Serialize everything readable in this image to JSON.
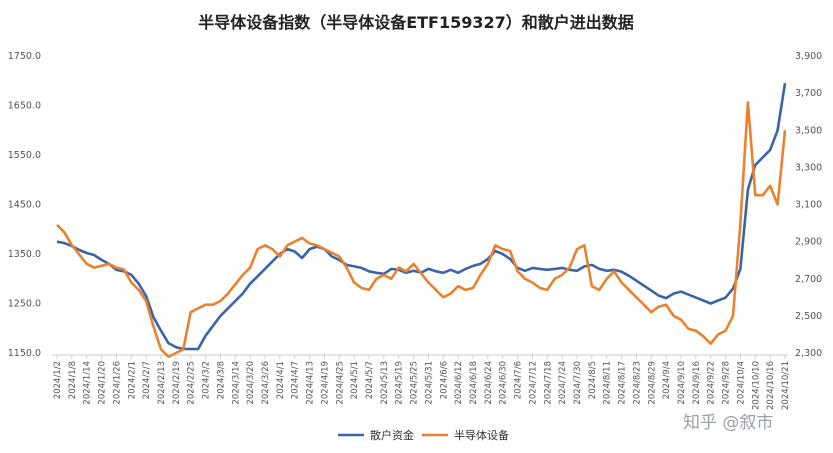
{
  "chart_data": {
    "type": "line",
    "title": "半导体设备指数（半导体设备ETF159327）和散户进出数据",
    "y_left": {
      "ticks": [
        "1750.0",
        "1650.0",
        "1550.0",
        "1450.0",
        "1350.0",
        "1250.0",
        "1150.0"
      ],
      "min": 1150,
      "max": 1750
    },
    "y_right": {
      "ticks": [
        "3,900",
        "3,700",
        "3,500",
        "3,300",
        "3,100",
        "2,900",
        "2,700",
        "2,500",
        "2,300"
      ],
      "min": 2300,
      "max": 3900
    },
    "x_labels": [
      "2024/1/2",
      "2024/1/8",
      "2024/1/14",
      "2024/1/20",
      "2024/1/26",
      "2024/2/1",
      "2024/2/7",
      "2024/2/13",
      "2024/2/19",
      "2024/2/25",
      "2024/3/2",
      "2024/3/8",
      "2024/3/14",
      "2024/3/20",
      "2024/3/26",
      "2024/4/1",
      "2024/4/7",
      "2024/4/13",
      "2024/4/19",
      "2024/4/25",
      "2024/5/1",
      "2024/5/7",
      "2024/5/13",
      "2024/5/19",
      "2024/5/25",
      "2024/5/31",
      "2024/6/6",
      "2024/6/12",
      "2024/6/18",
      "2024/6/24",
      "2024/6/30",
      "2024/7/6",
      "2024/7/12",
      "2024/7/18",
      "2024/7/24",
      "2024/7/30",
      "2024/8/5",
      "2024/8/11",
      "2024/8/17",
      "2024/8/23",
      "2024/8/29",
      "2024/9/4",
      "2024/9/10",
      "2024/9/16",
      "2024/9/22",
      "2024/9/28",
      "2024/10/4",
      "2024/10/10",
      "2024/10/16",
      "2024/10/21"
    ],
    "series": [
      {
        "name": "散户资金",
        "axis": "left",
        "color": "#3b64a8",
        "values": [
          1375,
          1372,
          1366,
          1358,
          1352,
          1348,
          1338,
          1330,
          1318,
          1315,
          1308,
          1290,
          1265,
          1222,
          1195,
          1170,
          1162,
          1158,
          1158,
          1158,
          1185,
          1205,
          1225,
          1240,
          1255,
          1270,
          1290,
          1305,
          1320,
          1335,
          1350,
          1360,
          1355,
          1342,
          1360,
          1365,
          1360,
          1345,
          1338,
          1328,
          1325,
          1322,
          1315,
          1312,
          1310,
          1320,
          1318,
          1312,
          1316,
          1312,
          1320,
          1315,
          1312,
          1318,
          1312,
          1320,
          1326,
          1330,
          1340,
          1356,
          1350,
          1340,
          1322,
          1316,
          1322,
          1320,
          1318,
          1320,
          1322,
          1318,
          1316,
          1325,
          1328,
          1320,
          1316,
          1318,
          1314,
          1306,
          1296,
          1286,
          1276,
          1266,
          1261,
          1270,
          1274,
          1268,
          1262,
          1256,
          1250,
          1256,
          1262,
          1280,
          1320,
          1480,
          1530,
          1545,
          1560,
          1600,
          1695
        ]
      },
      {
        "name": "半导体设备",
        "axis": "right",
        "color": "#e8822f",
        "values": [
          2990,
          2950,
          2880,
          2830,
          2780,
          2760,
          2770,
          2780,
          2760,
          2750,
          2680,
          2640,
          2580,
          2440,
          2320,
          2280,
          2300,
          2320,
          2520,
          2540,
          2560,
          2560,
          2580,
          2620,
          2670,
          2720,
          2760,
          2860,
          2880,
          2860,
          2820,
          2880,
          2900,
          2920,
          2890,
          2880,
          2860,
          2840,
          2820,
          2760,
          2680,
          2650,
          2640,
          2700,
          2720,
          2700,
          2760,
          2740,
          2780,
          2730,
          2680,
          2640,
          2600,
          2620,
          2660,
          2640,
          2650,
          2720,
          2780,
          2880,
          2860,
          2850,
          2740,
          2700,
          2680,
          2650,
          2640,
          2700,
          2720,
          2760,
          2860,
          2880,
          2660,
          2640,
          2700,
          2740,
          2680,
          2640,
          2600,
          2560,
          2520,
          2550,
          2560,
          2500,
          2480,
          2430,
          2420,
          2390,
          2350,
          2400,
          2420,
          2500,
          3000,
          3650,
          3150,
          3150,
          3200,
          3100,
          3500
        ]
      }
    ],
    "legend": [
      "散户资金",
      "半导体设备"
    ],
    "legend_position": "bottom",
    "grid": false
  },
  "watermark": "知乎 @叙市"
}
